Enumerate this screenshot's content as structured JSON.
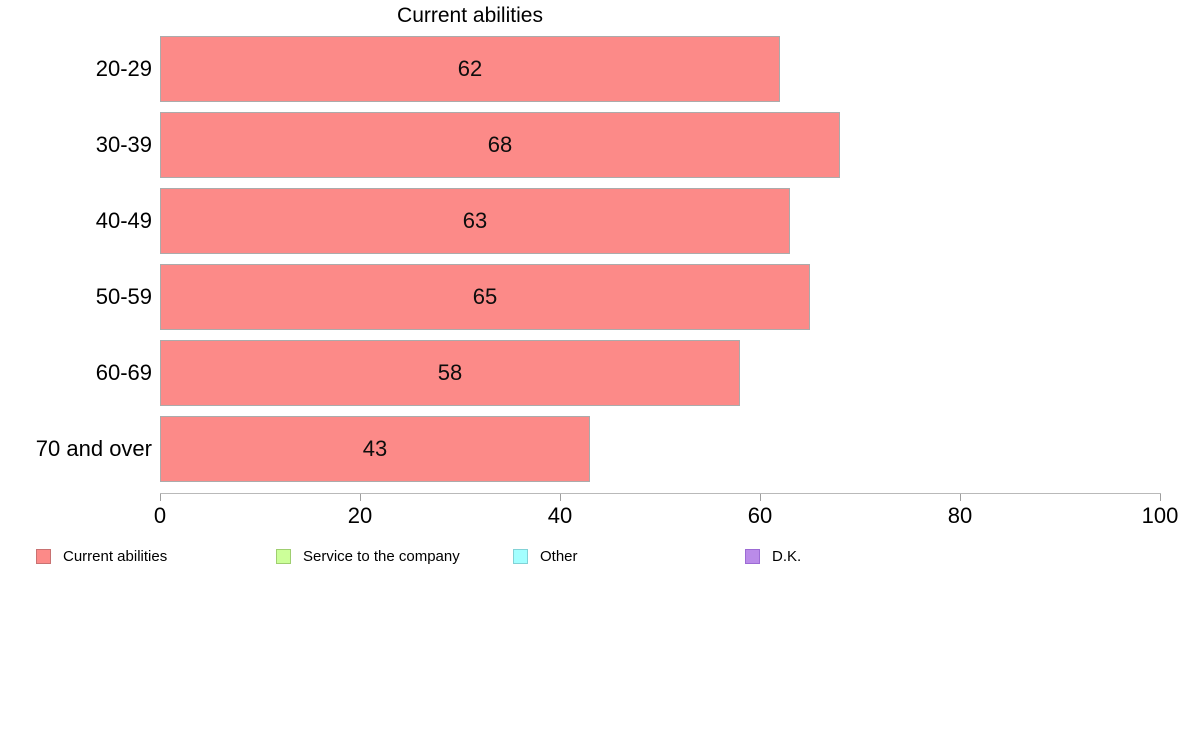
{
  "chart_data": {
    "type": "bar",
    "orientation": "horizontal",
    "title": "Current abilities",
    "categories": [
      "20-29",
      "30-39",
      "40-49",
      "50-59",
      "60-69",
      "70 and over"
    ],
    "values": [
      62,
      68,
      63,
      65,
      58,
      43
    ],
    "xlim": [
      0,
      100
    ],
    "x_ticks": [
      0,
      20,
      40,
      60,
      80,
      100
    ],
    "grid": false,
    "legend_position": "bottom",
    "bar_color": "#FC8A88",
    "bar_border_color": "#ABABAB",
    "axis_line_color": "#B9B9B9",
    "legend": [
      {
        "label": "Current abilities",
        "color": "#FC8A88",
        "border": "#C87272"
      },
      {
        "label": "Service to the company",
        "color": "#CCFF99",
        "border": "#9FCE70"
      },
      {
        "label": "Other",
        "color": "#A3FFFF",
        "border": "#82D2D6"
      },
      {
        "label": "D.K.",
        "color": "#BA8BE9",
        "border": "#9C6BD4"
      }
    ]
  }
}
